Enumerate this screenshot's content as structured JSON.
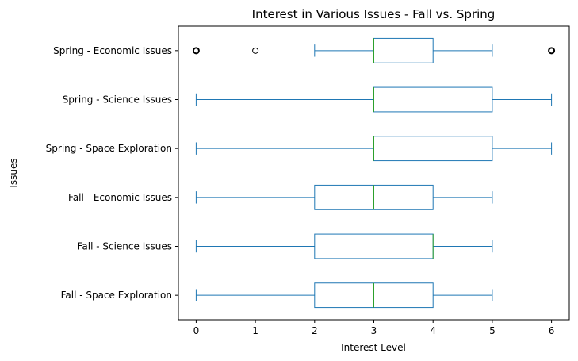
{
  "chart_data": {
    "type": "boxplot",
    "orientation": "horizontal",
    "title": "Interest in Various Issues - Fall vs. Spring",
    "xlabel": "Interest Level",
    "ylabel": "Issues",
    "xlim": [
      -0.3,
      6.3
    ],
    "xticks": [
      0,
      1,
      2,
      3,
      4,
      5,
      6
    ],
    "grid": false,
    "colors": {
      "box": "#1f77b4",
      "median": "#2ca02c",
      "flier": "#000000"
    },
    "categories": [
      "Spring - Economic Issues",
      "Spring - Science Issues",
      "Spring - Space Exploration",
      "Fall - Economic Issues",
      "Fall - Science Issues",
      "Fall - Space Exploration"
    ],
    "boxes": [
      {
        "whisker_low": 2,
        "q1": 3,
        "median": 3,
        "q3": 4,
        "whisker_high": 5,
        "fliers": [
          0,
          1,
          6
        ]
      },
      {
        "whisker_low": 0,
        "q1": 3,
        "median": 3,
        "q3": 5,
        "whisker_high": 6,
        "fliers": []
      },
      {
        "whisker_low": 0,
        "q1": 3,
        "median": 3,
        "q3": 5,
        "whisker_high": 6,
        "fliers": []
      },
      {
        "whisker_low": 0,
        "q1": 2,
        "median": 3,
        "q3": 4,
        "whisker_high": 5,
        "fliers": []
      },
      {
        "whisker_low": 0,
        "q1": 2,
        "median": 4,
        "q3": 4,
        "whisker_high": 5,
        "fliers": []
      },
      {
        "whisker_low": 0,
        "q1": 2,
        "median": 3,
        "q3": 4,
        "whisker_high": 5,
        "fliers": []
      }
    ]
  }
}
